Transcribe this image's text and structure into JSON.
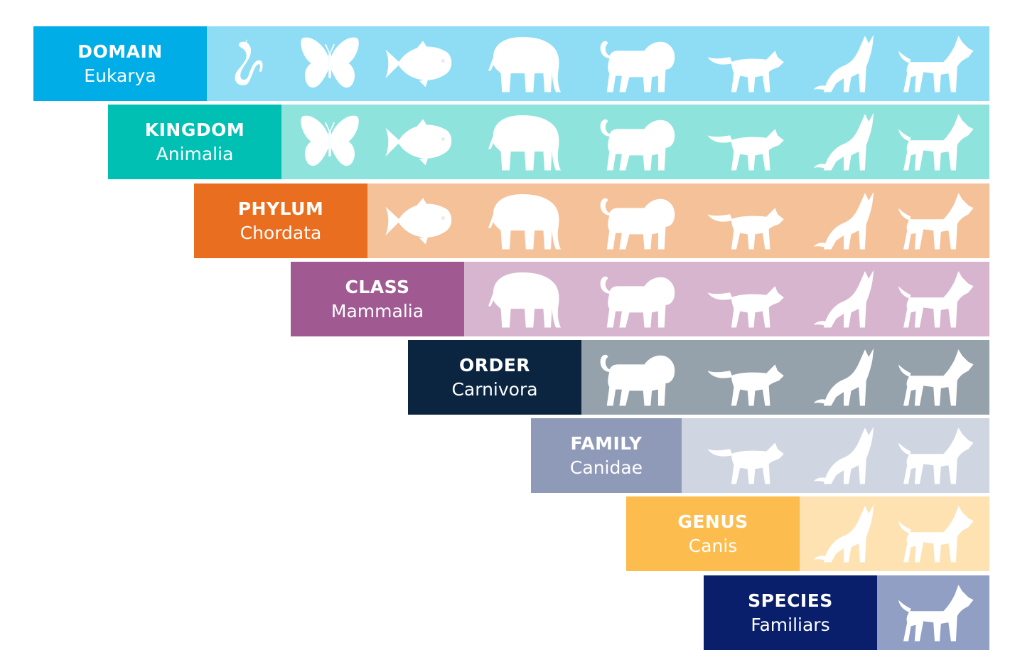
{
  "levels": [
    {
      "rank": "DOMAIN",
      "taxon": "Eukarya",
      "label_color": "#00ADE6",
      "band_color": "#8EDDF5",
      "animals": [
        "snake",
        "butterfly",
        "fish",
        "elephant",
        "lion",
        "fox",
        "wolf",
        "dog"
      ]
    },
    {
      "rank": "KINGDOM",
      "taxon": "Animalia",
      "label_color": "#00C0B4",
      "band_color": "#8EE3DD",
      "animals": [
        "butterfly",
        "fish",
        "elephant",
        "lion",
        "fox",
        "wolf",
        "dog"
      ]
    },
    {
      "rank": "PHYLUM",
      "taxon": "Chordata",
      "label_color": "#EA6E20",
      "band_color": "#F4C199",
      "animals": [
        "fish",
        "elephant",
        "lion",
        "fox",
        "wolf",
        "dog"
      ]
    },
    {
      "rank": "CLASS",
      "taxon": "Mammalia",
      "label_color": "#A05A91",
      "band_color": "#D7B5CE",
      "animals": [
        "elephant",
        "lion",
        "fox",
        "wolf",
        "dog"
      ]
    },
    {
      "rank": "ORDER",
      "taxon": "Carnivora",
      "label_color": "#0B2440",
      "band_color": "#95A1AB",
      "animals": [
        "lion",
        "fox",
        "wolf",
        "dog"
      ]
    },
    {
      "rank": "FAMILY",
      "taxon": "Canidae",
      "label_color": "#8F9AB8",
      "band_color": "#CFD5E1",
      "animals": [
        "fox",
        "wolf",
        "dog"
      ]
    },
    {
      "rank": "GENUS",
      "taxon": "Canis",
      "label_color": "#FDBC4E",
      "band_color": "#FEE2B2",
      "animals": [
        "wolf",
        "dog"
      ]
    },
    {
      "rank": "SPECIES",
      "taxon": "Familiars",
      "label_color": "#0A1F6B",
      "band_color": "#919FC4",
      "animals": [
        "dog"
      ]
    }
  ]
}
